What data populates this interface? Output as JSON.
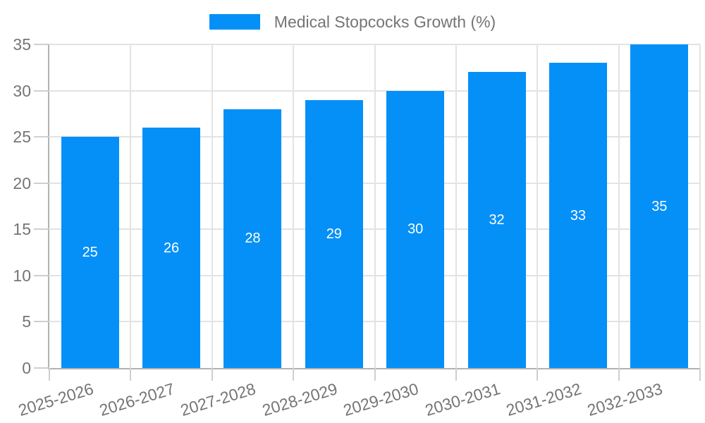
{
  "chart_data": {
    "type": "bar",
    "title": "Medical Stopcocks Growth (%)",
    "categories": [
      "2025-2026",
      "2026-2027",
      "2027-2028",
      "2028-2029",
      "2029-2030",
      "2030-2031",
      "2031-2032",
      "2032-2033"
    ],
    "values": [
      25,
      26,
      28,
      29,
      30,
      32,
      33,
      35
    ],
    "xlabel": "",
    "ylabel": "",
    "ylim": [
      0,
      35
    ],
    "yticks": [
      0,
      5,
      10,
      15,
      20,
      25,
      30,
      35
    ],
    "grid": true,
    "legend_position": "top",
    "value_labels": "inside-center",
    "x_label_rotation_deg": -17
  },
  "legend": {
    "series_label": "Medical Stopcocks Growth (%)"
  },
  "colors": {
    "bar": "#0590f8",
    "grid": "#e3e3e3",
    "axis": "#b2b2b2",
    "tick": "#cfcfcf",
    "text": "#757575",
    "value-text": "#ffffff",
    "bg": "#ffffff"
  }
}
